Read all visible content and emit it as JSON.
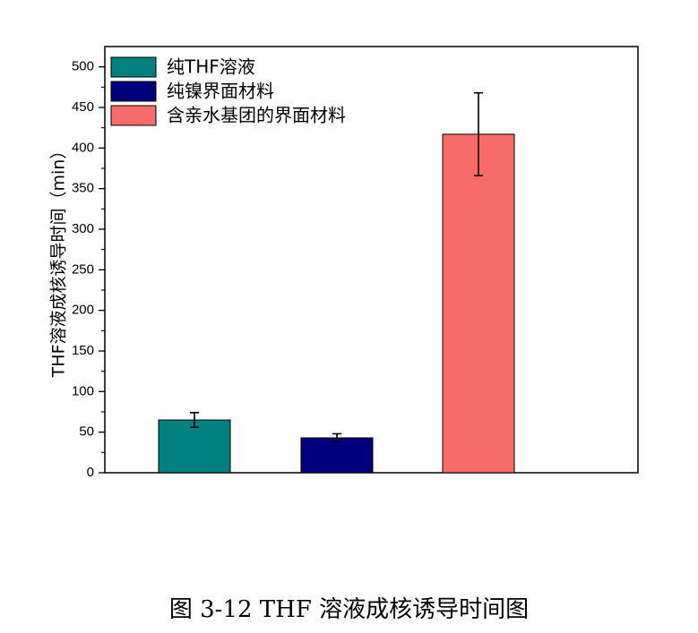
{
  "chart_data": {
    "type": "bar",
    "categories": [
      "纯THF溶液",
      "纯镍界面材料",
      "含亲水基团的界面材料"
    ],
    "values": [
      65,
      43,
      417
    ],
    "errors": [
      9,
      5,
      51
    ],
    "colors": [
      "#008080",
      "#00007f",
      "#f76b6b"
    ],
    "ylabel": "THF溶液成核诱导时间（min）",
    "xlabel": "",
    "ylim": [
      0,
      525
    ],
    "yticks": [
      0,
      50,
      100,
      150,
      200,
      250,
      300,
      350,
      400,
      450,
      500
    ],
    "legend_position": "top-left",
    "legend": [
      "纯THF溶液",
      "纯镍界面材料",
      "含亲水基团的界面材料"
    ]
  },
  "caption": "图 3-12 THF 溶液成核诱导时间图"
}
